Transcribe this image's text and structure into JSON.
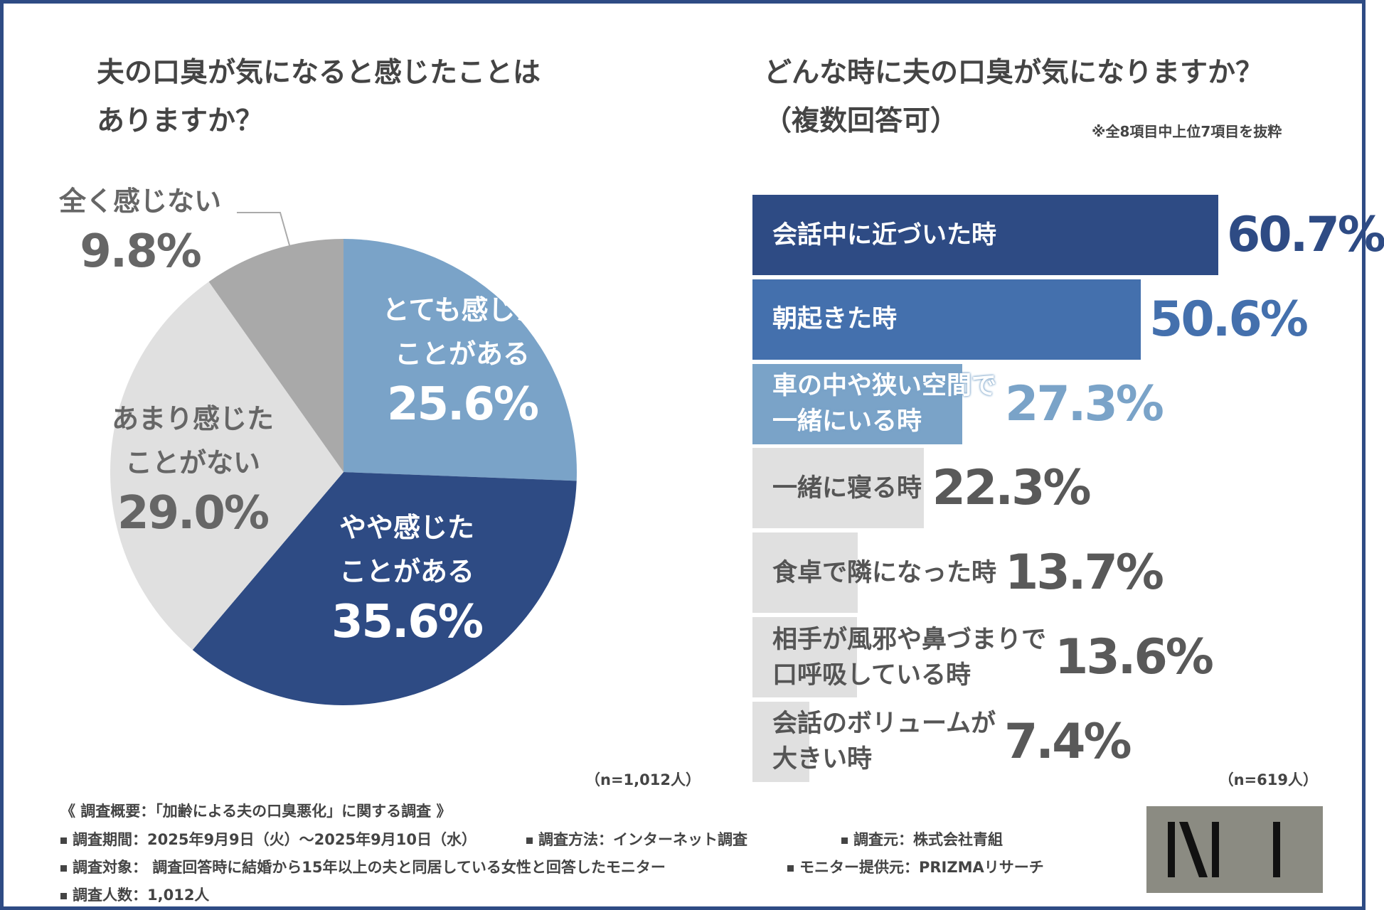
{
  "chart_data": [
    {
      "type": "pie",
      "title": "夫の口臭が気になると感じたことは\nありますか？",
      "categories": [
        "とても感じた\nことがある",
        "やや感じた\nことがある",
        "あまり感じた\nことがない",
        "全く感じない"
      ],
      "values": [
        25.6,
        35.6,
        29.0,
        9.8
      ],
      "value_labels": [
        "25.6%",
        "35.6%",
        "29.0%",
        "9.8%"
      ],
      "colors": [
        "#7aa3c8",
        "#2e4b84",
        "#e0e0e0",
        "#a9a9a9"
      ],
      "label_colors": [
        "#ffffff",
        "#ffffff",
        "#666666",
        "#666666"
      ],
      "note": "（n=1,012人）"
    },
    {
      "type": "bar",
      "title": "どんな時に夫の口臭が気になりますか？\n（複数回答可）",
      "subtitle": "※全8項目中上位7項目を抜粋",
      "categories": [
        "会話中に近づいた時",
        "朝起きた時",
        "車の中や狭い空間で\n一緒にいる時",
        "一緒に寝る時",
        "食卓で隣になった時",
        "相手が風邪や鼻づまりで\n口呼吸している時",
        "会話のボリュームが\n大きい時"
      ],
      "values": [
        60.7,
        50.6,
        27.3,
        22.3,
        13.7,
        13.6,
        7.4
      ],
      "value_labels": [
        "60.7%",
        "50.6%",
        "27.3%",
        "22.3%",
        "13.7%",
        "13.6%",
        "7.4%"
      ],
      "colors": [
        "#2e4b84",
        "#4470ad",
        "#7aa3c8",
        "#e0e0e0",
        "#e0e0e0",
        "#e0e0e0",
        "#e0e0e0"
      ],
      "label_colors": [
        "#ffffff",
        "#ffffff",
        "#ffffff",
        "#555555",
        "#555555",
        "#555555",
        "#555555"
      ],
      "value_colors": [
        "#2e4b84",
        "#4470ad",
        "#7aa3c8",
        "#595959",
        "#595959",
        "#595959",
        "#595959"
      ],
      "note": "（n=619人）"
    }
  ],
  "footer": {
    "heading": "《 調査概要：「加齢による夫の口臭悪化」に関する調査 》",
    "items": [
      "調査期間：2025年9月9日（火）～2025年9月10日（水）",
      "調査方法：インターネット調査",
      "調査元：株式会社青組",
      "調査対象： 調査回答時に結婚から15年以上の夫と同居している女性と回答したモニター",
      "モニター提供元：PRIZMAリサーチ",
      "調査人数：1,012人"
    ]
  }
}
